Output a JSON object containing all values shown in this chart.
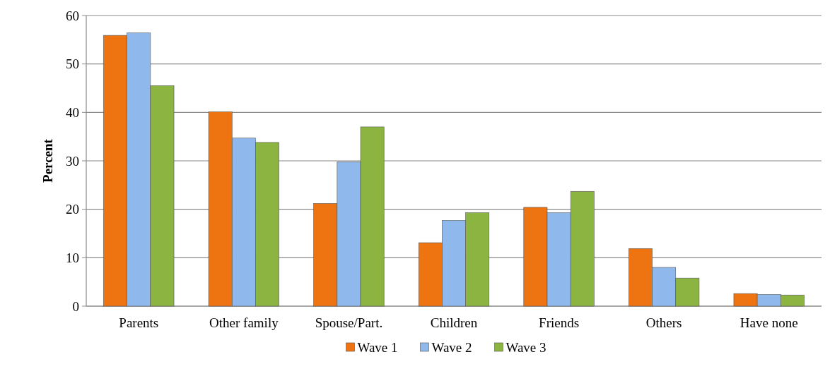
{
  "chart_data": {
    "type": "bar",
    "ylabel": "Percent",
    "categories": [
      "Parents",
      "Other family",
      "Spouse/Part.",
      "Children",
      "Friends",
      "Others",
      "Have none"
    ],
    "series": [
      {
        "name": "Wave 1",
        "color": "#ed7410",
        "values": [
          55.9,
          40.1,
          21.2,
          13.1,
          20.4,
          11.9,
          2.6
        ]
      },
      {
        "name": "Wave 2",
        "color": "#8fb9ec",
        "values": [
          56.4,
          34.7,
          29.8,
          17.7,
          19.3,
          8.0,
          2.4
        ]
      },
      {
        "name": "Wave 3",
        "color": "#8cb440",
        "values": [
          45.5,
          33.8,
          37.0,
          19.3,
          23.7,
          5.8,
          2.3
        ]
      }
    ],
    "ylim": [
      0,
      60
    ],
    "yticks": [
      0,
      10,
      20,
      30,
      40,
      50,
      60
    ],
    "grid": "y",
    "legend": "bottom"
  }
}
